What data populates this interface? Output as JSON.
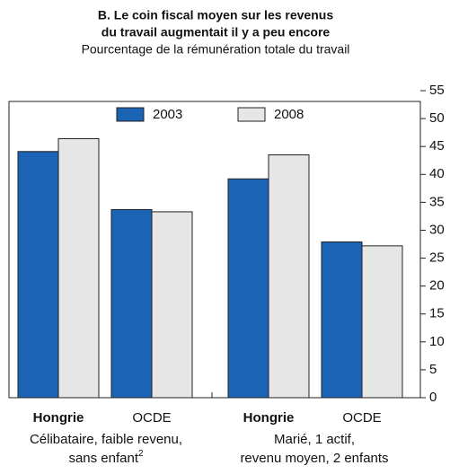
{
  "chart_data": {
    "type": "bar",
    "title": [
      "B. Le coin fiscal moyen sur les revenus",
      "du travail augmentait il y a peu encore"
    ],
    "subtitle": "Pourcentage de la rémunération totale du travail",
    "categories": [
      "Hongrie",
      "OCDE",
      "Hongrie",
      "OCDE"
    ],
    "groups": [
      {
        "lines": [
          "Célibataire, faible revenu,",
          "sans enfant"
        ],
        "note": "2"
      },
      {
        "lines": [
          "Marié, 1 actif,",
          "revenu moyen, 2 enfants"
        ]
      }
    ],
    "series": [
      {
        "name": "2003",
        "color": "#1b63b5",
        "values": [
          44.1,
          33.7,
          39.2,
          27.9
        ]
      },
      {
        "name": "2008",
        "color": "#e6e6e6",
        "values": [
          46.4,
          33.3,
          43.5,
          27.2
        ]
      }
    ],
    "ylim": [
      0,
      55
    ],
    "yticks": [
      0,
      5,
      10,
      15,
      20,
      25,
      30,
      35,
      40,
      45,
      50,
      55
    ]
  }
}
